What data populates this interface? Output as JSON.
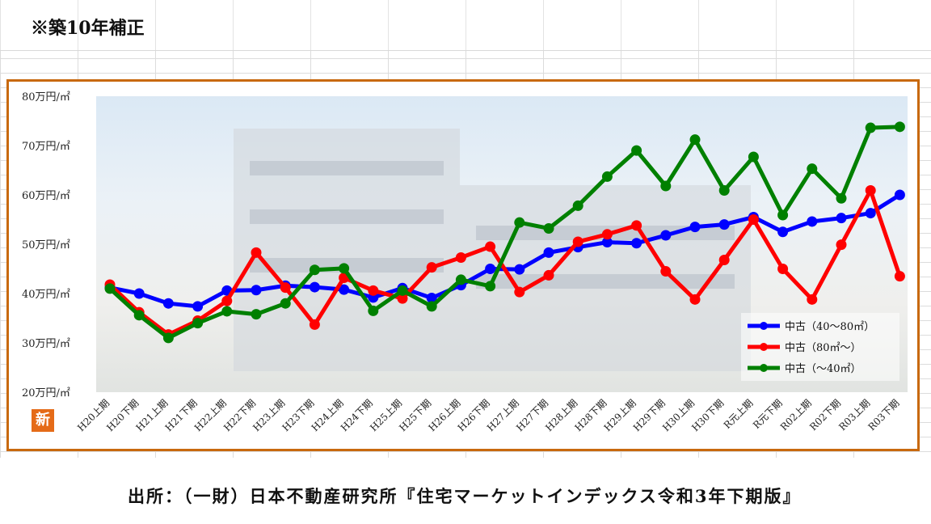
{
  "note": "※築10年補正",
  "source": "出所：（一財）日本不動産研究所『住宅マーケットインデックス令和3年下期版』",
  "logo_text": "新",
  "colors": {
    "frame": "#c8690e",
    "series_blue": "#0000ff",
    "series_red": "#ff0000",
    "series_green": "#008000"
  },
  "chart_data": {
    "type": "line",
    "y_ticks": [
      "20万円/㎡",
      "30万円/㎡",
      "40万円/㎡",
      "50万円/㎡",
      "60万円/㎡",
      "70万円/㎡",
      "80万円/㎡"
    ],
    "ylim": [
      20,
      80
    ],
    "categories": [
      "H20上期",
      "H20下期",
      "H21上期",
      "H21下期",
      "H22上期",
      "H22下期",
      "H23上期",
      "H23下期",
      "H24上期",
      "H24下期",
      "H25上期",
      "H25下期",
      "H26上期",
      "H26下期",
      "H27上期",
      "H27下期",
      "H28上期",
      "H28下期",
      "H29上期",
      "H29下期",
      "H30上期",
      "H30下期",
      "R元上期",
      "R元下期",
      "R02上期",
      "R02下期",
      "R03上期",
      "R03下期"
    ],
    "legend_position": "bottom-right",
    "series": [
      {
        "name": "中古（40～80㎡）",
        "color": "#0000ff",
        "values": [
          41.2,
          40.0,
          38.0,
          37.4,
          40.6,
          40.7,
          41.6,
          41.3,
          40.8,
          39.2,
          41.1,
          39.1,
          41.7,
          45.0,
          44.9,
          48.3,
          49.4,
          50.4,
          50.2,
          51.8,
          53.5,
          54.0,
          55.5,
          52.5,
          54.6,
          55.3,
          56.3,
          60.0
        ]
      },
      {
        "name": "中古（80㎡～）",
        "color": "#ff0000",
        "values": [
          41.8,
          36.2,
          31.7,
          34.5,
          38.5,
          48.3,
          41.2,
          33.7,
          43.2,
          40.6,
          39.0,
          45.3,
          47.3,
          49.5,
          40.3,
          43.7,
          50.5,
          52.0,
          53.8,
          44.5,
          38.8,
          46.8,
          55.0,
          45.0,
          38.8,
          49.9,
          60.9,
          43.5
        ]
      },
      {
        "name": "中古（～40㎡）",
        "color": "#008000",
        "values": [
          41.0,
          35.6,
          31.0,
          34.0,
          36.4,
          35.8,
          38.0,
          44.8,
          45.1,
          36.5,
          40.6,
          37.4,
          42.8,
          41.5,
          54.4,
          53.2,
          57.8,
          63.7,
          69.0,
          61.8,
          71.2,
          60.9,
          67.7,
          55.9,
          65.3,
          59.3,
          73.6,
          73.8
        ]
      }
    ]
  }
}
